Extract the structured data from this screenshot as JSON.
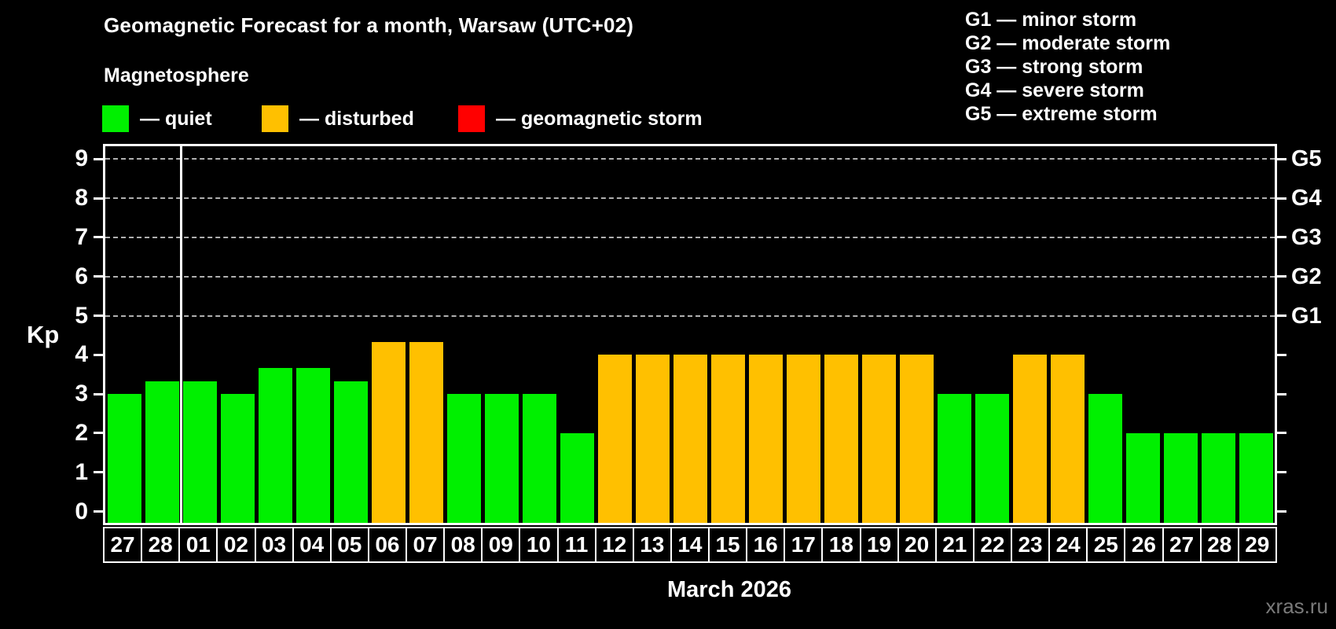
{
  "header": {
    "title": "Geomagnetic Forecast for a month, Warsaw (UTC+02)",
    "subtitle": "Magnetosphere"
  },
  "g_legend": [
    "G1 — minor storm",
    "G2 — moderate storm",
    "G3 — strong storm",
    "G4 — severe storm",
    "G5 — extreme storm"
  ],
  "watermark": "xras.ru",
  "chart_data": {
    "type": "bar",
    "title": "Geomagnetic Forecast for a month, Warsaw (UTC+02)",
    "subtitle": "Magnetosphere",
    "ylabel": "Kp",
    "xlabel": "March 2026",
    "ylim": [
      -0.35,
      9.4
    ],
    "yticks": [
      0,
      1,
      2,
      3,
      4,
      5,
      6,
      7,
      8,
      9
    ],
    "gridlines_at": [
      5,
      6,
      7,
      8,
      9
    ],
    "grid": "dashed horizontal at G-storm levels only",
    "legend_position": "top-left",
    "legend": [
      {
        "status": "quiet",
        "label": "— quiet",
        "color": "#00f000"
      },
      {
        "status": "disturbed",
        "label": "— disturbed",
        "color": "#ffc000"
      },
      {
        "status": "storm",
        "label": "— geomagnetic storm",
        "color": "#ff0000"
      }
    ],
    "right_axis_labels": [
      {
        "kp": 5,
        "label": "G1"
      },
      {
        "kp": 6,
        "label": "G2"
      },
      {
        "kp": 7,
        "label": "G3"
      },
      {
        "kp": 8,
        "label": "G4"
      },
      {
        "kp": 9,
        "label": "G5"
      }
    ],
    "month_separator_after_index": 2,
    "categories": [
      "27",
      "28",
      "01",
      "02",
      "03",
      "04",
      "05",
      "06",
      "07",
      "08",
      "09",
      "10",
      "11",
      "12",
      "13",
      "14",
      "15",
      "16",
      "17",
      "18",
      "19",
      "20",
      "21",
      "22",
      "23",
      "24",
      "25",
      "26",
      "27",
      "28",
      "29"
    ],
    "values": [
      3.0,
      3.33,
      3.33,
      3.0,
      3.67,
      3.67,
      3.33,
      4.33,
      4.33,
      3.0,
      3.0,
      3.0,
      2.0,
      4.0,
      4.0,
      4.0,
      4.0,
      4.0,
      4.0,
      4.0,
      4.0,
      4.0,
      3.0,
      3.0,
      4.0,
      4.0,
      3.0,
      2.0,
      2.0,
      2.0,
      2.0
    ],
    "statuses": [
      "quiet",
      "quiet",
      "quiet",
      "quiet",
      "quiet",
      "quiet",
      "quiet",
      "disturbed",
      "disturbed",
      "quiet",
      "quiet",
      "quiet",
      "quiet",
      "disturbed",
      "disturbed",
      "disturbed",
      "disturbed",
      "disturbed",
      "disturbed",
      "disturbed",
      "disturbed",
      "disturbed",
      "quiet",
      "quiet",
      "disturbed",
      "disturbed",
      "quiet",
      "quiet",
      "quiet",
      "quiet",
      "quiet"
    ],
    "colors": {
      "quiet": "#00f000",
      "disturbed": "#ffc000",
      "storm": "#ff0000"
    }
  }
}
